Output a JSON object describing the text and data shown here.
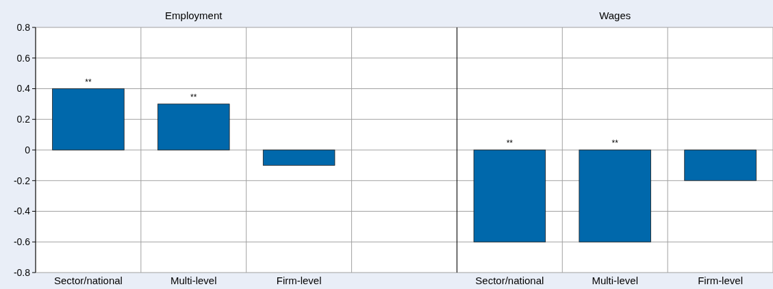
{
  "chart_data": [
    {
      "type": "bar",
      "title": "Employment",
      "categories": [
        "Sector/national",
        "Multi-level",
        "Firm-level",
        null
      ],
      "values": [
        0.4,
        0.3,
        -0.1,
        null
      ],
      "value_labels": [
        "**",
        "**",
        null,
        null
      ],
      "color": "#0068ab",
      "ylim": [
        -0.8,
        0.8
      ],
      "yticks": [
        -0.8,
        -0.6,
        -0.4,
        -0.2,
        0,
        0.2,
        0.4,
        0.6,
        0.8
      ],
      "grid": true
    },
    {
      "type": "bar",
      "title": "Wages",
      "categories": [
        "Sector/national",
        "Multi-level",
        "Firm-level"
      ],
      "values": [
        -0.6,
        -0.6,
        -0.2
      ],
      "value_labels": [
        "**",
        "**",
        null
      ],
      "color": "#0068ab",
      "ylim": [
        -0.8,
        0.8
      ],
      "yticks": [
        -0.8,
        -0.6,
        -0.4,
        -0.2,
        0,
        0.2,
        0.4,
        0.6,
        0.8
      ],
      "grid": true,
      "tick_labels": "x"
    }
  ]
}
